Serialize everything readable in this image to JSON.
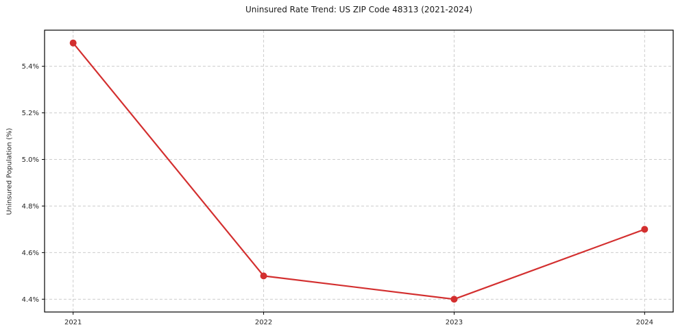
{
  "chart_data": {
    "type": "line",
    "title": "Uninsured Rate Trend: US ZIP Code 48313 (2021-2024)",
    "xlabel": "",
    "ylabel": "Uninsured Population (%)",
    "x": [
      2021,
      2022,
      2023,
      2024
    ],
    "values": [
      5.5,
      4.5,
      4.4,
      4.7
    ],
    "x_tick_labels": [
      "2021",
      "2022",
      "2023",
      "2024"
    ],
    "y_ticks": [
      4.4,
      4.6,
      4.8,
      5.0,
      5.2,
      5.4
    ],
    "y_tick_labels": [
      "4.4%",
      "4.6%",
      "4.8%",
      "5.0%",
      "5.2%",
      "5.4%"
    ],
    "xlim": [
      2020.85,
      2024.15
    ],
    "ylim": [
      4.345,
      5.555
    ],
    "grid": true,
    "grid_style": "dashed",
    "legend_position": "none",
    "marker": "circle",
    "line_color": "#d32f2f",
    "marker_color": "#d32f2f",
    "grid_color": "#cccccc",
    "axis_color": "#000000",
    "text_color": "#262626"
  }
}
